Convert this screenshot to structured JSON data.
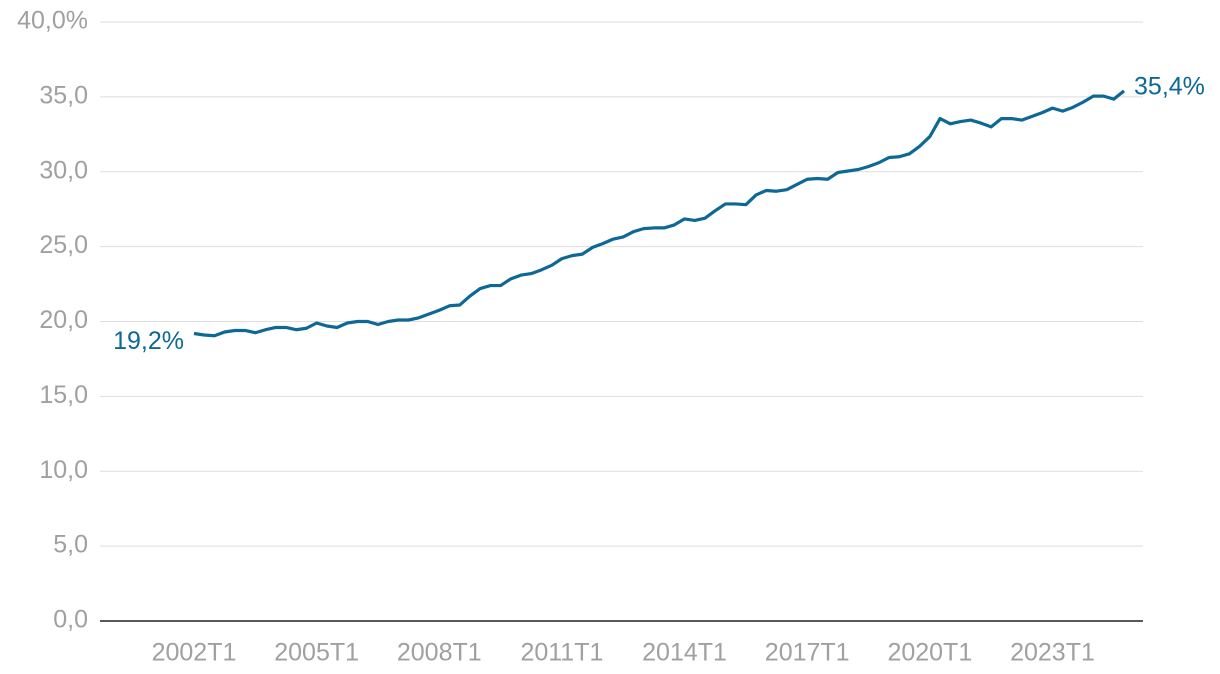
{
  "chart_data": {
    "type": "line",
    "categories": [
      "2002T1",
      null,
      null,
      null,
      null,
      null,
      null,
      null,
      null,
      null,
      null,
      null,
      "2005T1",
      null,
      null,
      null,
      null,
      null,
      null,
      null,
      null,
      null,
      null,
      null,
      "2008T1",
      null,
      null,
      null,
      null,
      null,
      null,
      null,
      null,
      null,
      null,
      null,
      "2011T1",
      null,
      null,
      null,
      null,
      null,
      null,
      null,
      null,
      null,
      null,
      null,
      "2014T1",
      null,
      null,
      null,
      null,
      null,
      null,
      null,
      null,
      null,
      null,
      null,
      "2017T1",
      null,
      null,
      null,
      null,
      null,
      null,
      null,
      null,
      null,
      null,
      null,
      "2020T1",
      null,
      null,
      null,
      null,
      null,
      null,
      null,
      null,
      null,
      null,
      null,
      "2023T1",
      null,
      null,
      null,
      null,
      null,
      null,
      null
    ],
    "values": [
      19.2,
      19.1,
      19.05,
      19.3,
      19.4,
      19.4,
      19.25,
      19.45,
      19.6,
      19.6,
      19.45,
      19.55,
      19.9,
      19.7,
      19.6,
      19.9,
      20.0,
      20.0,
      19.8,
      20.0,
      20.1,
      20.1,
      20.25,
      20.5,
      20.75,
      21.05,
      21.1,
      21.7,
      22.2,
      22.4,
      22.4,
      22.85,
      23.1,
      23.2,
      23.45,
      23.75,
      24.2,
      24.4,
      24.5,
      24.95,
      25.2,
      25.5,
      25.65,
      26.0,
      26.2,
      26.25,
      26.25,
      26.45,
      26.85,
      26.75,
      26.9,
      27.4,
      27.85,
      27.85,
      27.8,
      28.45,
      28.75,
      28.7,
      28.8,
      29.15,
      29.5,
      29.55,
      29.5,
      29.95,
      30.05,
      30.15,
      30.35,
      30.6,
      30.95,
      31.0,
      31.2,
      31.7,
      32.35,
      33.55,
      33.2,
      33.35,
      33.45,
      33.25,
      33.0,
      33.55,
      33.55,
      33.45,
      33.7,
      33.95,
      34.25,
      34.05,
      34.3,
      34.65,
      35.05,
      35.05,
      34.85,
      35.4
    ],
    "value_labels": [
      "19,2%",
      null,
      null,
      null,
      null,
      null,
      null,
      null,
      null,
      null,
      null,
      null,
      null,
      null,
      null,
      null,
      null,
      null,
      null,
      null,
      null,
      null,
      null,
      null,
      null,
      null,
      null,
      null,
      null,
      null,
      null,
      null,
      null,
      null,
      null,
      null,
      null,
      null,
      null,
      null,
      null,
      null,
      null,
      null,
      null,
      null,
      null,
      null,
      null,
      null,
      null,
      null,
      null,
      null,
      null,
      null,
      null,
      null,
      null,
      null,
      null,
      null,
      null,
      null,
      null,
      null,
      null,
      null,
      null,
      null,
      null,
      null,
      null,
      null,
      null,
      null,
      null,
      null,
      null,
      null,
      null,
      null,
      null,
      null,
      null,
      null,
      null,
      null,
      null,
      null,
      null,
      "35,4%"
    ],
    "color": "#0e6896",
    "ylim": [
      0,
      40
    ],
    "yticks": [
      {
        "value": 0,
        "label": "0,0"
      },
      {
        "value": 5,
        "label": "5,0"
      },
      {
        "value": 10,
        "label": "10,0"
      },
      {
        "value": 15,
        "label": "15,0"
      },
      {
        "value": 20,
        "label": "20,0"
      },
      {
        "value": 25,
        "label": "25,0"
      },
      {
        "value": 30,
        "label": "30,0"
      },
      {
        "value": 35,
        "label": "35,0"
      },
      {
        "value": 40,
        "label": "40,0%"
      }
    ],
    "grid": true
  }
}
